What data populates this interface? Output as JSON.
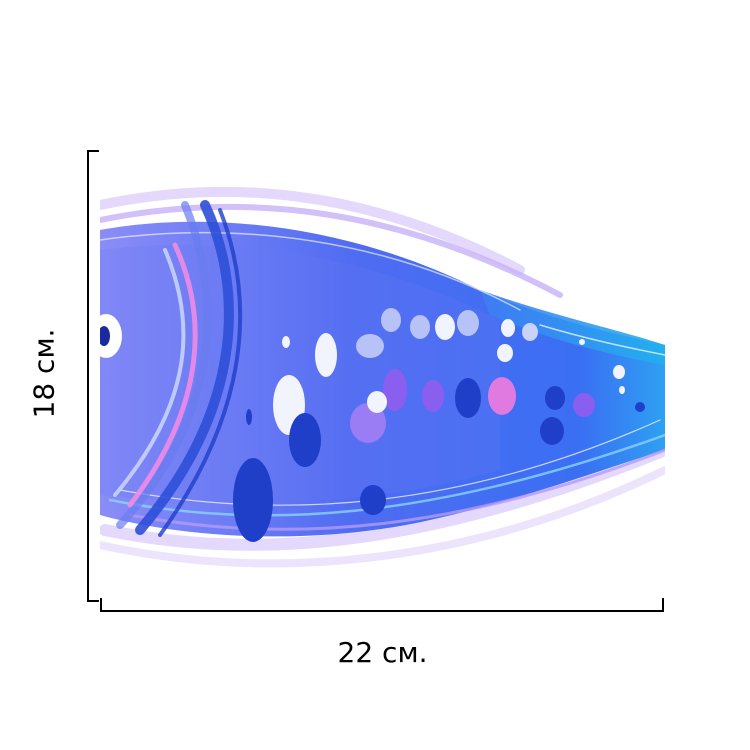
{
  "dimensions": {
    "width_label": "22 см.",
    "height_label": "18 см."
  },
  "artwork": {
    "subject": "fish-illustration",
    "colors": {
      "body_blue": "#4a5cf0",
      "body_light": "#8c8cf5",
      "tail_cyan": "#2aa8f0",
      "accent_pink": "#f07ae0",
      "accent_purple": "#b07cf5",
      "spot_dark": "#1f3fc9",
      "spot_light": "#e8eefc"
    }
  }
}
